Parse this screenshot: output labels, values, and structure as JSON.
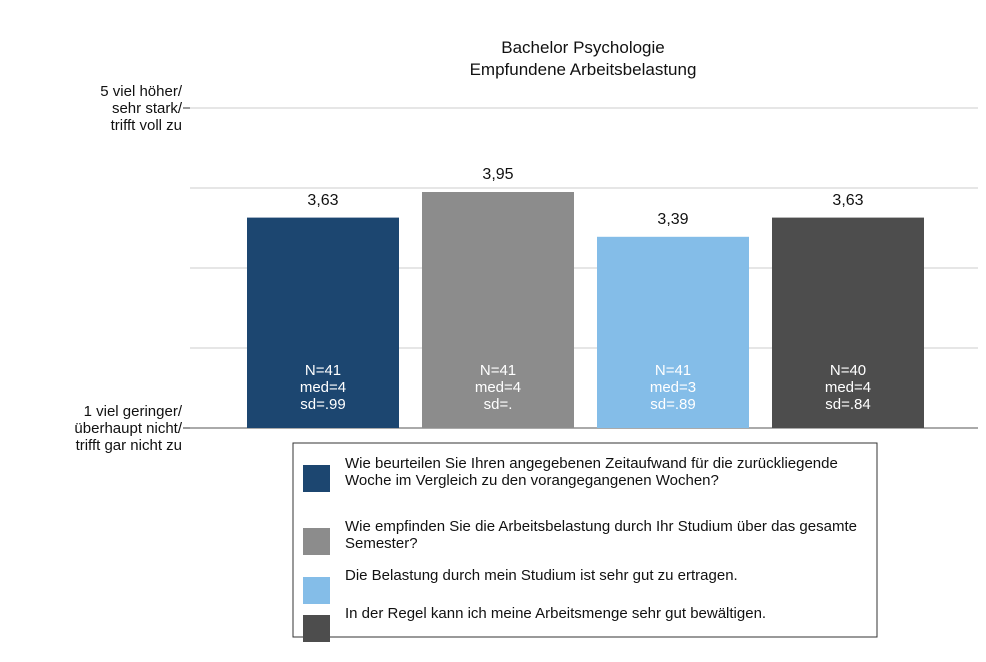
{
  "chart_data": {
    "type": "bar",
    "title": "Bachelor Psychologie",
    "subtitle": "Empfundene Arbeitsbelastung",
    "ylim": [
      1,
      5
    ],
    "yticks": [
      {
        "value": 1,
        "label": "1 viel geringer/\nüberhaupt nicht/\ntrifft gar nicht zu"
      },
      {
        "value": 2,
        "label": null
      },
      {
        "value": 3,
        "label": null
      },
      {
        "value": 4,
        "label": null
      },
      {
        "value": 5,
        "label": "5 viel höher/\nsehr stark/\ntrifft voll zu"
      }
    ],
    "grid": true,
    "series": [
      {
        "name": "Wie beurteilen Sie Ihren angegebenen Zeitaufwand für die zurückliegende Woche im Vergleich zu den vorangegangenen Wochen?",
        "color": "#1c4670",
        "values": [
          3.63
        ],
        "value_labels": [
          "3,63"
        ],
        "annotation": "N=41\nmed=4\nsd=.99"
      },
      {
        "name": "Wie empfinden Sie die Arbeitsbelastung durch Ihr Studium über das gesamte Semester?",
        "color": "#8c8c8c",
        "values": [
          3.95
        ],
        "value_labels": [
          "3,95"
        ],
        "annotation": "N=41\nmed=4\nsd=."
      },
      {
        "name": "Die Belastung durch mein Studium ist sehr gut zu ertragen.",
        "color": "#84bde8",
        "values": [
          3.39
        ],
        "value_labels": [
          "3,39"
        ],
        "annotation": "N=41\nmed=3\nsd=.89"
      },
      {
        "name": "In der Regel kann ich meine Arbeitsmenge sehr gut bewältigen.",
        "color": "#4d4d4d",
        "values": [
          3.63
        ],
        "value_labels": [
          "3,63"
        ],
        "annotation": "N=40\nmed=4\nsd=.84"
      }
    ]
  }
}
